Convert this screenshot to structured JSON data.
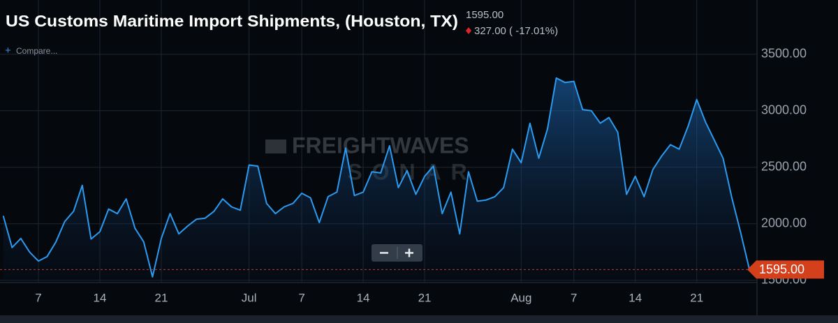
{
  "chart_data": {
    "type": "line",
    "title": "US Customs Maritime Import Shipments, (Houston, TX)",
    "header_value": "1595.00",
    "change": "327.00 ( -17.01%)",
    "compare_button": "Compare...",
    "watermark": [
      "FREIGHTWAVES",
      "SONAR"
    ],
    "last_value_tag": "1595.00",
    "last_value": 1595,
    "color": "#2a9bf0",
    "grid": true,
    "categories": [
      null,
      null,
      null,
      null,
      "7",
      null,
      null,
      null,
      null,
      null,
      null,
      "14",
      null,
      null,
      null,
      null,
      null,
      null,
      "21",
      null,
      null,
      null,
      null,
      null,
      null,
      null,
      null,
      null,
      "Jul",
      null,
      null,
      null,
      null,
      null,
      "7",
      null,
      null,
      null,
      null,
      null,
      null,
      "14",
      null,
      null,
      null,
      null,
      null,
      null,
      "21",
      null,
      null,
      null,
      null,
      null,
      null,
      null,
      null,
      null,
      null,
      "Aug",
      null,
      null,
      null,
      null,
      null,
      "7",
      null,
      null,
      null,
      null,
      null,
      null,
      "14",
      null,
      null,
      null,
      null,
      null,
      null,
      "21",
      null,
      null,
      null,
      null,
      null,
      null
    ],
    "values": [
      2070,
      1790,
      1870,
      1750,
      1670,
      1710,
      1840,
      2020,
      2110,
      2340,
      1865,
      1930,
      2130,
      2090,
      2220,
      1960,
      1840,
      1530,
      1870,
      2090,
      1910,
      1980,
      2040,
      2050,
      2110,
      2220,
      2150,
      2120,
      2520,
      2510,
      2180,
      2090,
      2150,
      2180,
      2270,
      2230,
      2010,
      2240,
      2280,
      2670,
      2250,
      2280,
      2460,
      2450,
      2690,
      2320,
      2470,
      2260,
      2420,
      2510,
      2090,
      2280,
      1910,
      2460,
      2200,
      2210,
      2240,
      2320,
      2660,
      2540,
      2890,
      2580,
      2840,
      3290,
      3250,
      3260,
      3010,
      3000,
      2890,
      2940,
      2810,
      2260,
      2420,
      2240,
      2480,
      2600,
      2700,
      2660,
      2860,
      3100,
      2900,
      2740,
      2580,
      2230,
      1922,
      1595
    ],
    "ylim": [
      1480,
      3980
    ],
    "yticks": [
      {
        "value": 1500,
        "label": "1500.00"
      },
      {
        "value": 2000,
        "label": "2000.00"
      },
      {
        "value": 2500,
        "label": "2500.00"
      },
      {
        "value": 3000,
        "label": "3000.00"
      },
      {
        "value": 3500,
        "label": "3500.00"
      }
    ]
  }
}
